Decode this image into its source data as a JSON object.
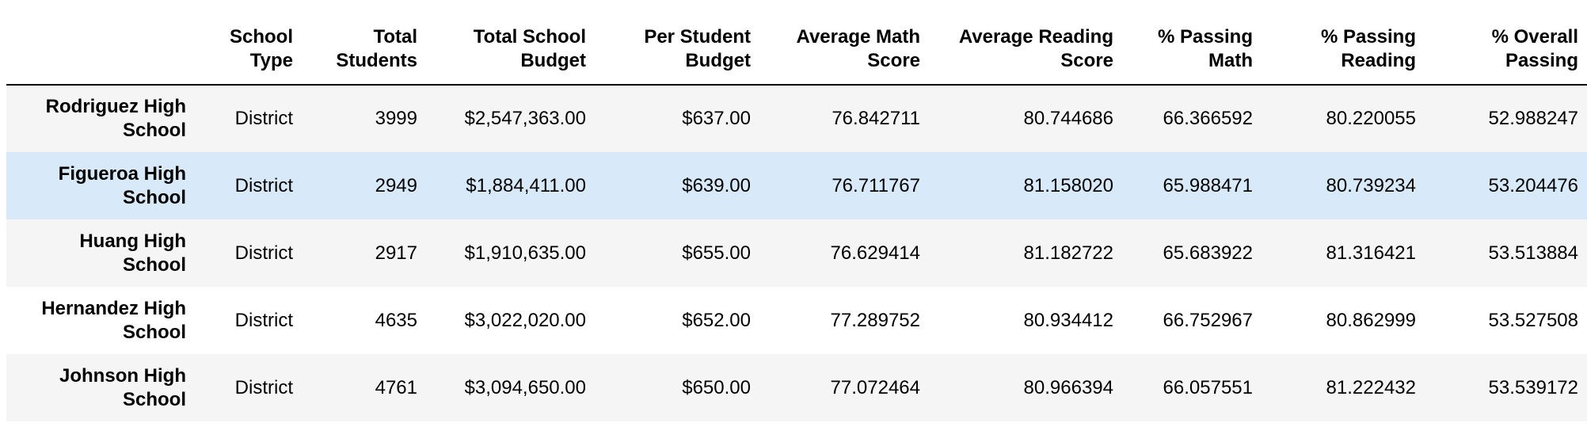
{
  "table": {
    "columns": [
      "",
      "School Type",
      "Total Students",
      "Total School Budget",
      "Per Student Budget",
      "Average Math Score",
      "Average Reading Score",
      "% Passing Math",
      "% Passing Reading",
      "% Overall Passing"
    ],
    "rows": [
      {
        "school": "Rodriguez High School",
        "type": "District",
        "students": "3999",
        "budget": "$2,547,363.00",
        "per_student": "$637.00",
        "math": "76.842711",
        "reading": "80.744686",
        "pass_math": "66.366592",
        "pass_reading": "80.220055",
        "overall": "52.988247"
      },
      {
        "school": "Figueroa High School",
        "type": "District",
        "students": "2949",
        "budget": "$1,884,411.00",
        "per_student": "$639.00",
        "math": "76.711767",
        "reading": "81.158020",
        "pass_math": "65.988471",
        "pass_reading": "80.739234",
        "overall": "53.204476"
      },
      {
        "school": "Huang High School",
        "type": "District",
        "students": "2917",
        "budget": "$1,910,635.00",
        "per_student": "$655.00",
        "math": "76.629414",
        "reading": "81.182722",
        "pass_math": "65.683922",
        "pass_reading": "81.316421",
        "overall": "53.513884"
      },
      {
        "school": "Hernandez High School",
        "type": "District",
        "students": "4635",
        "budget": "$3,022,020.00",
        "per_student": "$652.00",
        "math": "77.289752",
        "reading": "80.934412",
        "pass_math": "66.752967",
        "pass_reading": "80.862999",
        "overall": "53.527508"
      },
      {
        "school": "Johnson High School",
        "type": "District",
        "students": "4761",
        "budget": "$3,094,650.00",
        "per_student": "$650.00",
        "math": "77.072464",
        "reading": "80.966394",
        "pass_math": "66.057551",
        "pass_reading": "81.222432",
        "overall": "53.539172"
      }
    ],
    "highlight_color": "#d8eaf9",
    "stripe_color": "#f5f5f5"
  }
}
